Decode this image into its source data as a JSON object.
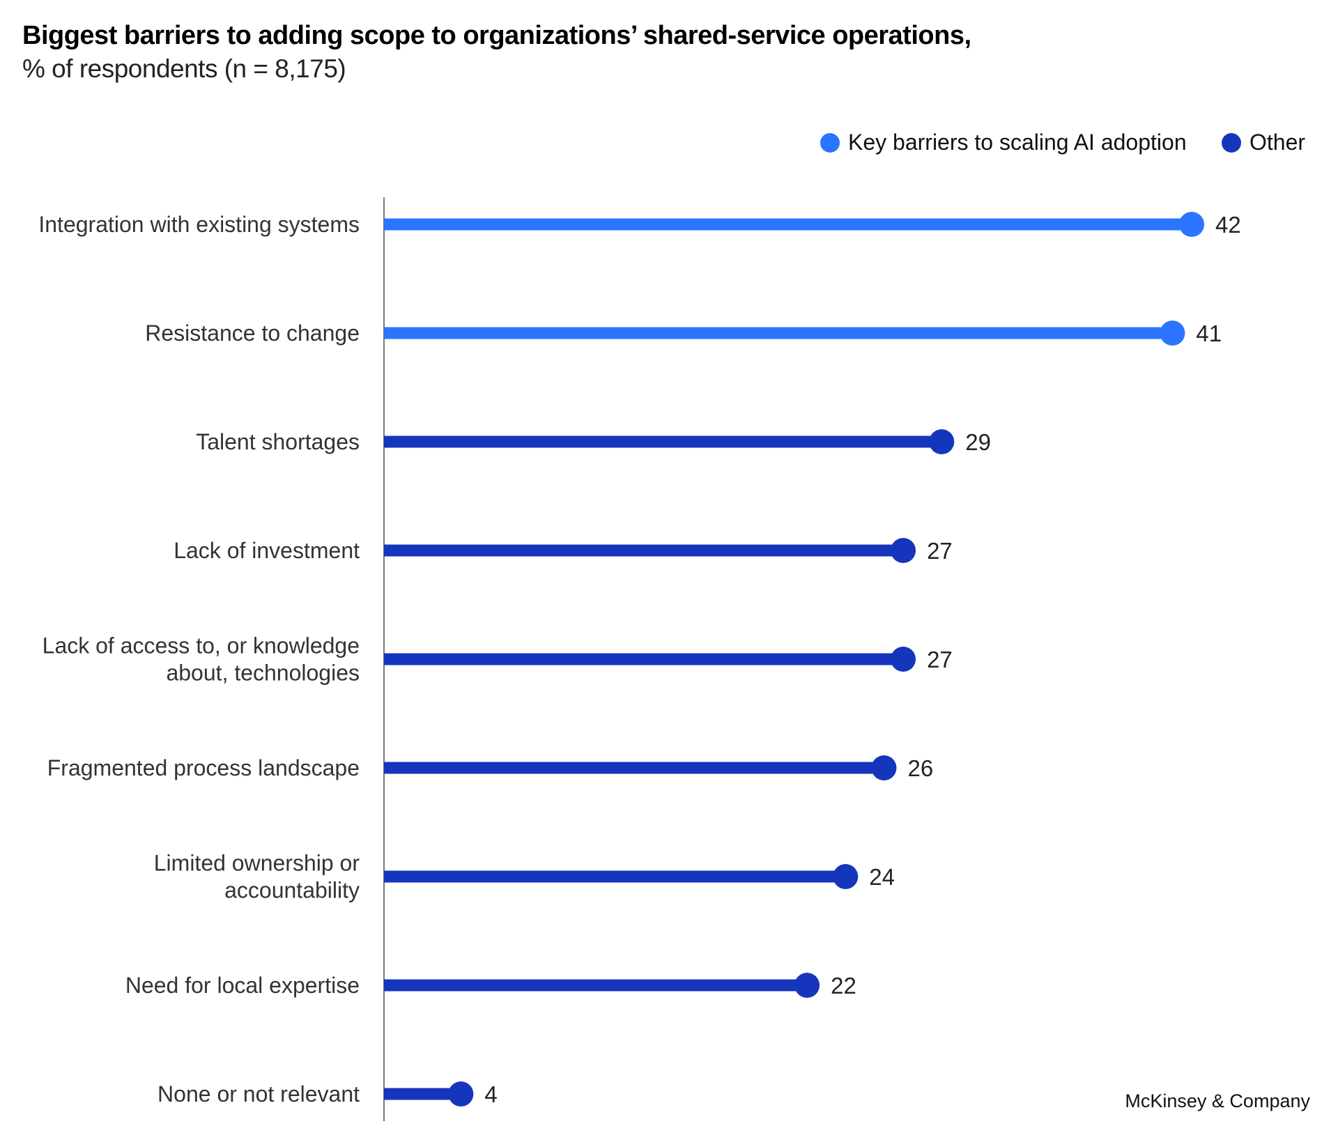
{
  "chart_data": {
    "type": "bar",
    "orientation": "horizontal",
    "style": "lollipop",
    "title": "Biggest barriers to adding scope to organizations’ shared-service operations,",
    "subtitle": "% of respondents (n = 8,175)",
    "categories": [
      [
        "Integration with existing systems"
      ],
      [
        "Resistance to change"
      ],
      [
        "Talent shortages"
      ],
      [
        "Lack of investment"
      ],
      [
        "Lack of access to, or knowledge",
        "about, technologies"
      ],
      [
        "Fragmented process landscape"
      ],
      [
        "Limited ownership or",
        "accountability"
      ],
      [
        "Need for local expertise"
      ],
      [
        "None or not relevant"
      ]
    ],
    "values": [
      42,
      41,
      29,
      27,
      27,
      26,
      24,
      22,
      4
    ],
    "groups": [
      "key",
      "key",
      "other",
      "other",
      "other",
      "other",
      "other",
      "other",
      "other"
    ],
    "legend": [
      {
        "key": "key",
        "name": "Key barriers to scaling AI adoption",
        "color": "#2B74FF"
      },
      {
        "key": "other",
        "name": "Other",
        "color": "#1536BC"
      }
    ],
    "legend_placement": "top-right",
    "xlim": [
      0,
      42
    ],
    "grid": false
  },
  "source": "McKinsey & Company"
}
